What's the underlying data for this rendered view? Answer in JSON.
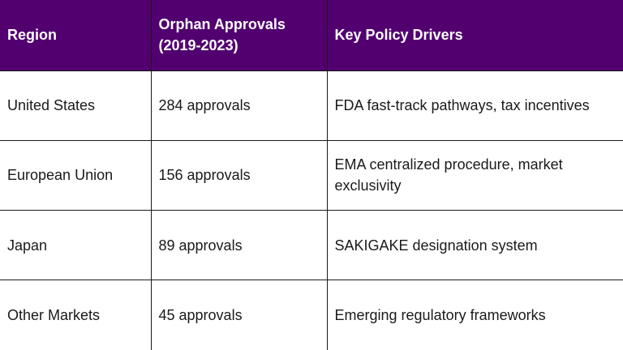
{
  "table": {
    "headers": [
      "Region",
      "Orphan Approvals (2019-2023)",
      "Key Policy Drivers"
    ],
    "rows": [
      [
        "United States",
        "284 approvals",
        "FDA fast-track pathways, tax incentives"
      ],
      [
        "European Union",
        "156 approvals",
        "EMA centralized procedure, market exclusivity"
      ],
      [
        "Japan",
        "89 approvals",
        "SAKIGAKE designation system"
      ],
      [
        "Other Markets",
        "45 approvals",
        "Emerging regulatory frameworks"
      ]
    ]
  },
  "colors": {
    "header_bg": "#520070",
    "header_text": "#ffffff",
    "border": "#1a1a1a"
  }
}
